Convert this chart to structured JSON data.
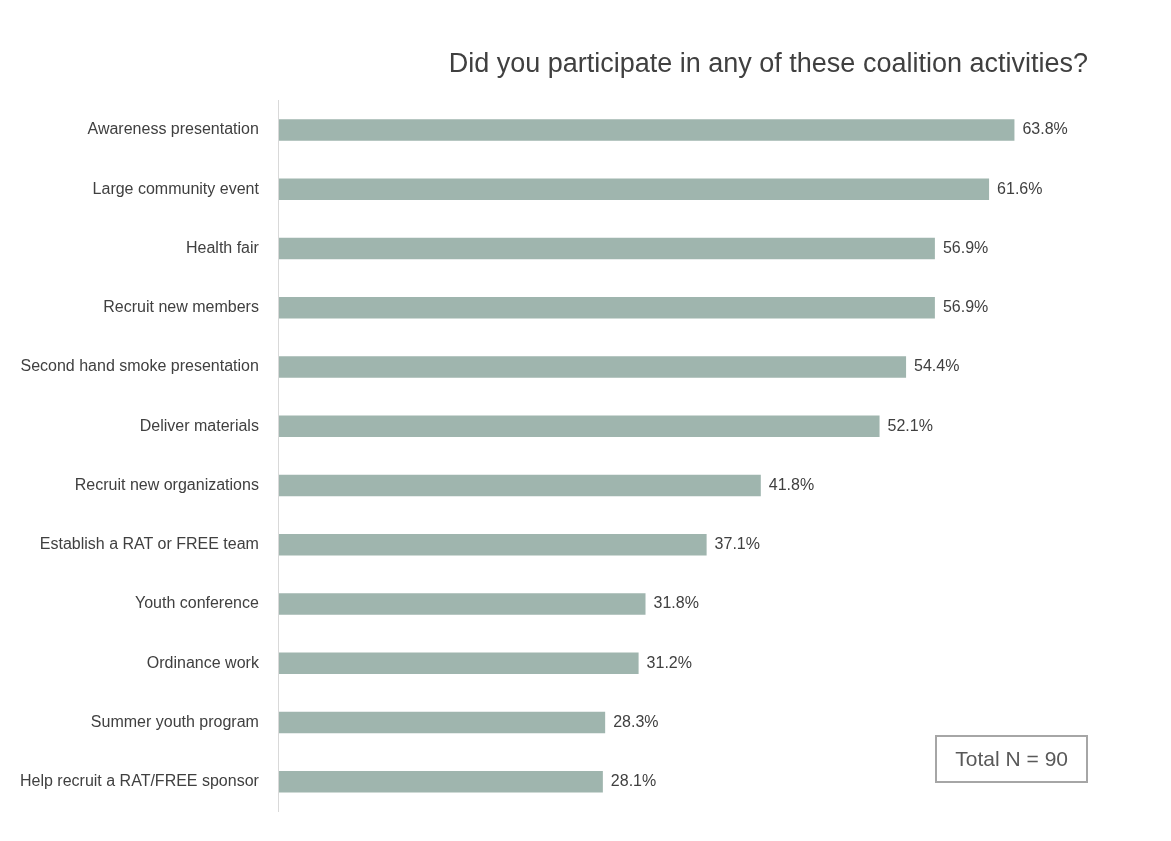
{
  "chart_data": {
    "type": "bar",
    "orientation": "horizontal",
    "title": "Did you participate in any of these coalition activities?",
    "categories": [
      "Awareness presentation",
      "Large community event",
      "Health fair",
      "Recruit new members",
      "Second hand smoke presentation",
      "Deliver materials",
      "Recruit new organizations",
      "Establish a RAT or FREE team",
      "Youth conference",
      "Ordinance work",
      "Summer youth program",
      "Help recruit a RAT/FREE sponsor"
    ],
    "values": [
      63.8,
      61.6,
      56.9,
      56.9,
      54.4,
      52.1,
      41.8,
      37.1,
      31.8,
      31.2,
      28.3,
      28.1
    ],
    "value_labels": [
      "63.8%",
      "61.6%",
      "56.9%",
      "56.9%",
      "54.4%",
      "52.1%",
      "41.8%",
      "37.1%",
      "31.8%",
      "31.2%",
      "28.3%",
      "28.1%"
    ],
    "color": "#9fb5ae",
    "legend": false,
    "tick_labels": "y",
    "annotations": [
      "Total N = 90"
    ]
  }
}
